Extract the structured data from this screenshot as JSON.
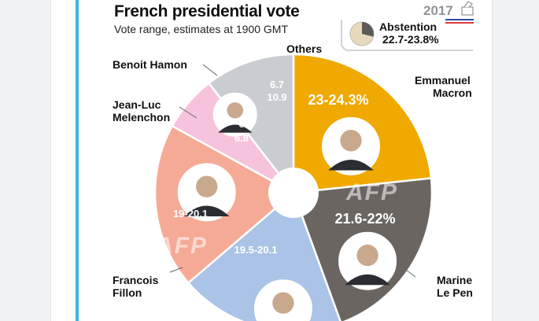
{
  "chart_data": {
    "type": "pie",
    "title": "French presidential vote",
    "subtitle": "Vote range, estimates at 1900 GMT",
    "series": [
      {
        "name": "Emmanuel Macron",
        "label_lines": [
          "Emmanuel",
          "Macron"
        ],
        "value_text": "23-24.3%",
        "low": 23,
        "high": 24.3,
        "color": "#f0a900"
      },
      {
        "name": "Marine Le Pen",
        "label_lines": [
          "Marine",
          "Le Pen"
        ],
        "value_text": "21.6-22%",
        "low": 21.6,
        "high": 22,
        "color": "#6b6562"
      },
      {
        "name": "Francois Fillon",
        "label_lines": [
          "Francois",
          "Fillon"
        ],
        "value_text": "19.5-20.1",
        "low": 19.5,
        "high": 20.1,
        "color": "#aac3e6"
      },
      {
        "name": "Jean-Luc Melenchon",
        "label_lines": [
          "Jean-Luc",
          "Melenchon"
        ],
        "value_text": "19-20.1",
        "low": 19,
        "high": 20.1,
        "color": "#f5aa96"
      },
      {
        "name": "Benoit Hamon",
        "label_lines": [
          "Benoit Hamon"
        ],
        "value_text_lines": [
          "6",
          "6.8"
        ],
        "low": 6,
        "high": 6.8,
        "color": "#f7c3dc"
      },
      {
        "name": "Others",
        "label_lines": [
          "Others"
        ],
        "value_text_lines": [
          "6.7",
          "10.9"
        ],
        "low": 6.7,
        "high": 10.9,
        "color": "#c9ccd1"
      }
    ],
    "abstention": {
      "label": "Abstention",
      "value_text": "22.7-23.8%",
      "low": 22.7,
      "high": 23.8
    }
  },
  "logo": {
    "year": "2017"
  },
  "watermark": "AFP",
  "colors": {
    "accent": "#3db3df",
    "flag_blue": "#2f4aa0",
    "flag_red": "#d93a3a"
  }
}
